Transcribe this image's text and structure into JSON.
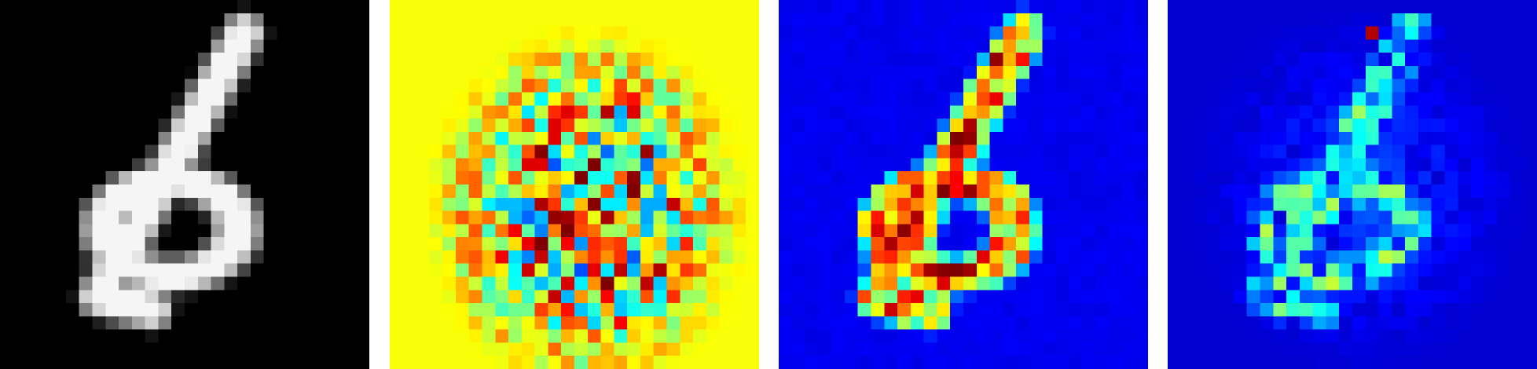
{
  "figure": {
    "panels": [
      {
        "id": "input-digit",
        "colormap": "gray",
        "background": "#000000"
      },
      {
        "id": "signed-attribution-map",
        "colormap": "jet-diverging",
        "background": "#99ff66"
      },
      {
        "id": "saliency-map-smooth",
        "colormap": "jet",
        "background": "#00009b"
      },
      {
        "id": "saliency-map-noisy",
        "colormap": "jet",
        "background": "#0000a8"
      }
    ],
    "grid_resolution": 28,
    "depicted_digit": "6"
  }
}
